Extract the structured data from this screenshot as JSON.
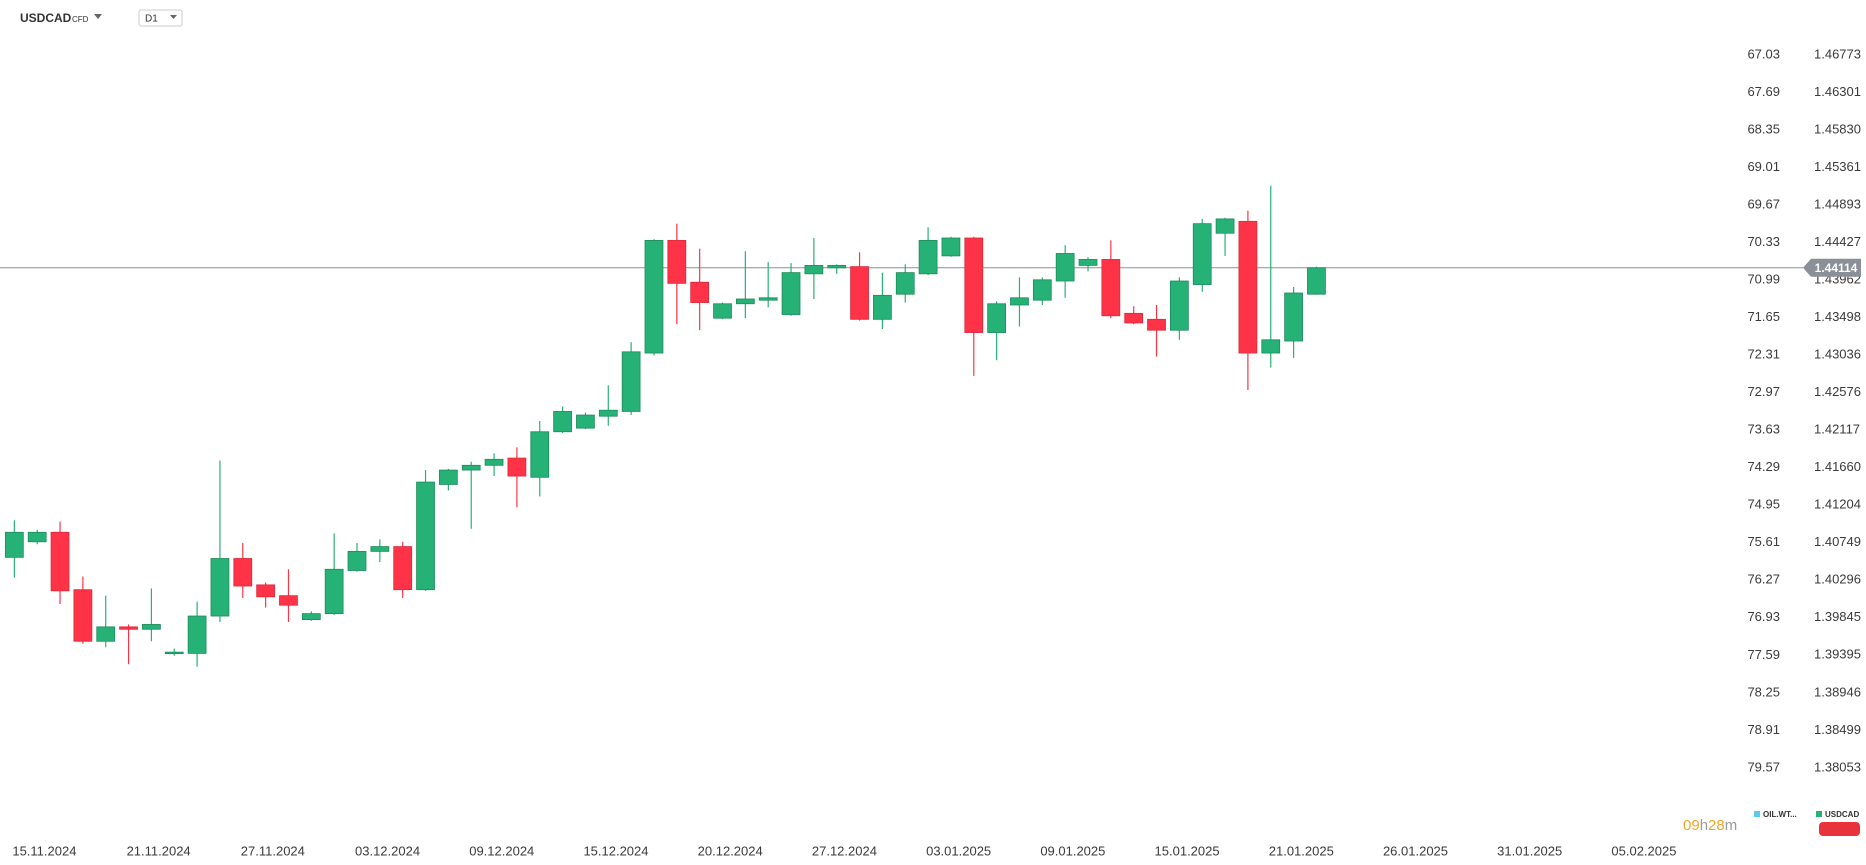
{
  "chart_data": {
    "type": "candlestick",
    "title": "USDCAD",
    "instrument_tag": "CFD",
    "timeframe": "D1",
    "categories": [
      "15.11.2024",
      null,
      null,
      null,
      null,
      "21.11.2024",
      null,
      null,
      null,
      null,
      "27.11.2024",
      null,
      null,
      null,
      null,
      "03.12.2024",
      null,
      null,
      null,
      null,
      "09.12.2024",
      null,
      null,
      null,
      null,
      "15.12.2024",
      null,
      null,
      null,
      null,
      "20.12.2024",
      null,
      null,
      null,
      null,
      "27.12.2024",
      null,
      null,
      null,
      null,
      "03.01.2025",
      null,
      null,
      null,
      null,
      "09.01.2025",
      null,
      null,
      null,
      null,
      "15.01.2025",
      null,
      null,
      null,
      null,
      "21.01.2025",
      null,
      null,
      null,
      null,
      "26.01.2025",
      null,
      null,
      null,
      null,
      "31.01.2025",
      null,
      null,
      null,
      null,
      "05.02.2025",
      null,
      null,
      null,
      null,
      null,
      null,
      null
    ],
    "open": [
      1.40573,
      1.40761,
      1.40876,
      1.40183,
      1.39563,
      1.39736,
      1.39707,
      1.39418,
      1.39418,
      1.39866,
      1.40559,
      1.40241,
      1.40111,
      1.39823,
      1.39895,
      1.40414,
      1.40645,
      1.40703,
      1.40183,
      1.41456,
      1.41631,
      1.41689,
      1.41777,
      1.41543,
      1.42098,
      1.42142,
      1.42288,
      1.42346,
      1.43062,
      1.44453,
      1.43935,
      1.43491,
      1.43669,
      1.43713,
      1.43536,
      1.44039,
      1.44113,
      1.44128,
      1.43477,
      1.43787,
      1.44039,
      1.44261,
      1.44483,
      1.43314,
      1.43654,
      1.43713,
      1.4395,
      1.44143,
      1.44217,
      1.43551,
      1.43477,
      1.43343,
      1.43906,
      1.44542,
      1.4469,
      1.43062,
      1.4321,
      1.43787,
      null,
      null,
      null,
      null,
      null,
      null,
      null,
      null,
      null,
      null,
      null,
      null,
      null,
      null,
      null,
      null,
      null,
      null,
      null,
      null
    ],
    "high": [
      1.41021,
      1.40905,
      1.41007,
      1.40342,
      1.40111,
      1.39765,
      1.40198,
      1.39476,
      1.40039,
      1.41748,
      1.40747,
      1.4027,
      1.40429,
      1.39923,
      1.40862,
      1.40747,
      1.4079,
      1.40761,
      1.41631,
      1.41645,
      1.41733,
      1.41835,
      1.41908,
      1.42229,
      1.42405,
      1.42332,
      1.42667,
      1.43195,
      1.44468,
      1.44661,
      1.4435,
      1.43684,
      1.4432,
      1.44187,
      1.44172,
      1.44483,
      1.44157,
      1.44305,
      1.44054,
      1.44157,
      1.44616,
      1.44498,
      1.44498,
      1.43699,
      1.43995,
      1.43995,
      1.44394,
      1.44246,
      1.44453,
      1.43639,
      1.43654,
      1.43995,
      1.4472,
      1.44735,
      1.44823,
      1.45134,
      1.43876,
      1.44128,
      null,
      null,
      null,
      null,
      null,
      null,
      null,
      null,
      null,
      null,
      null,
      null,
      null,
      null,
      null,
      null,
      null,
      null,
      null,
      null
    ],
    "low": [
      1.40328,
      1.40732,
      1.4001,
      1.39534,
      1.39491,
      1.39289,
      1.39563,
      1.3939,
      1.3926,
      1.39794,
      1.40082,
      1.39967,
      1.39794,
      1.39808,
      1.3988,
      1.404,
      1.40515,
      1.40082,
      1.40169,
      1.41383,
      1.40918,
      1.41558,
      1.41178,
      1.4131,
      1.42083,
      1.4213,
      1.42171,
      1.42302,
      1.43033,
      1.43417,
      1.43343,
      1.4348,
      1.43491,
      1.43625,
      1.43521,
      1.43728,
      1.44039,
      1.43462,
      1.43358,
      1.43684,
      1.44024,
      1.4425,
      1.42781,
      1.42974,
      1.43388,
      1.43654,
      1.43743,
      1.44069,
      1.43491,
      1.43417,
      1.43018,
      1.43225,
      1.43817,
      1.44261,
      1.42609,
      1.42885,
      1.43003,
      1.4378,
      null,
      null,
      null,
      null,
      null,
      null,
      null,
      null,
      null,
      null,
      null,
      null,
      null,
      null,
      null,
      null,
      null,
      null,
      null,
      null
    ],
    "close": [
      1.40876,
      1.40876,
      1.40169,
      1.39563,
      1.39736,
      1.39707,
      1.39765,
      1.39433,
      1.39866,
      1.40559,
      1.40227,
      1.40097,
      1.39996,
      1.39895,
      1.40429,
      1.40645,
      1.40703,
      1.40183,
      1.41485,
      1.41631,
      1.41689,
      1.41762,
      1.41558,
      1.42098,
      1.42346,
      1.42302,
      1.42361,
      1.43077,
      1.44453,
      1.43921,
      1.43684,
      1.43669,
      1.43728,
      1.43743,
      1.44054,
      1.44143,
      1.44143,
      1.43477,
      1.43773,
      1.44054,
      1.44453,
      1.44483,
      1.43314,
      1.43669,
      1.43743,
      1.43965,
      1.44291,
      1.44217,
      1.43521,
      1.43432,
      1.43343,
      1.4395,
      1.44661,
      1.4472,
      1.43062,
      1.43225,
      1.43802,
      1.44114,
      null,
      null,
      null,
      null,
      null,
      null,
      null,
      null,
      null,
      null,
      null,
      null,
      null,
      null,
      null,
      null,
      null,
      null,
      null,
      null
    ],
    "up_color": "#26b276",
    "down_color": "#ff3347",
    "ylim": [
      1.37609,
      1.47246
    ],
    "log_y": true,
    "yticks": [
      1.46773,
      1.46301,
      {
        "value": 1.4583,
        "label": "1.45830"
      },
      1.45361,
      1.44893,
      1.44427,
      1.43962,
      1.43498,
      1.43036,
      1.42576,
      1.42117,
      {
        "value": 1.4166,
        "label": "1.41660"
      },
      1.41204,
      1.40749,
      1.40296,
      1.39845,
      1.39395,
      1.38946,
      1.38499,
      1.38053
    ],
    "y2lim": [
      80.23,
      66.37
    ],
    "y2ticks": [
      67.03,
      67.69,
      68.35,
      69.01,
      69.67,
      70.33,
      70.99,
      71.65,
      72.31,
      72.97,
      73.63,
      74.29,
      74.95,
      75.61,
      76.27,
      76.93,
      77.59,
      78.25,
      78.91,
      79.57
    ],
    "last_price": 1.44114,
    "countdown": [
      "09",
      "h",
      "28",
      "m"
    ],
    "legend": [
      {
        "name": "OIL.WT...",
        "color": "#5bc8f0"
      },
      {
        "name": "USDCAD",
        "color": "#26b276"
      }
    ]
  }
}
